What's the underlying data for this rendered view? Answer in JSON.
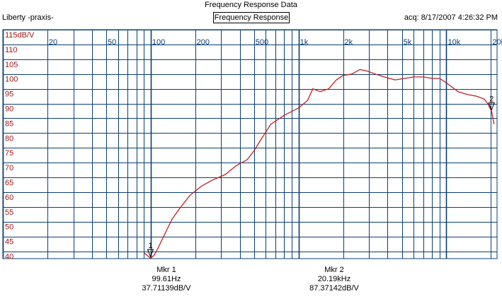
{
  "window_title": "Frequency Response Data",
  "app_name": "Liberty -praxis-",
  "acq_stamp": "acq: 8/17/2007 4:26:32 PM",
  "plot_title": "Frequency Response",
  "markers": [
    {
      "label": "Mkr 1",
      "freq": "99.61Hz",
      "level": "37.71139dB/V",
      "tag": "1",
      "x_hz": 99.61,
      "y_db": 37.71
    },
    {
      "label": "Mkr 2",
      "freq": "20.19kHz",
      "level": "87.37142dB/V",
      "tag": "2",
      "x_hz": 20190,
      "y_db": 87.37
    }
  ],
  "colors": {
    "grid": "#0b3f73",
    "trace": "#c02020",
    "y_labels": "#a01818",
    "x_labels": "#0b3f73"
  },
  "chart_data": {
    "type": "line",
    "xscale": "log",
    "xlim": [
      10,
      22000
    ],
    "ylim": [
      37.5,
      115
    ],
    "x_tick_labels": [
      {
        "hz": 20,
        "label": "20"
      },
      {
        "hz": 50,
        "label": "50"
      },
      {
        "hz": 100,
        "label": "100"
      },
      {
        "hz": 200,
        "label": "200"
      },
      {
        "hz": 500,
        "label": "500"
      },
      {
        "hz": 1000,
        "label": "1k"
      },
      {
        "hz": 2000,
        "label": "2k"
      },
      {
        "hz": 5000,
        "label": "5k"
      },
      {
        "hz": 10000,
        "label": "10k"
      },
      {
        "hz": 20000,
        "label": "20k"
      }
    ],
    "y_tick_labels": [
      {
        "db": 115,
        "label": "115dB/V"
      },
      {
        "db": 110,
        "label": "110"
      },
      {
        "db": 105,
        "label": "105"
      },
      {
        "db": 100,
        "label": "100"
      },
      {
        "db": 95,
        "label": "95"
      },
      {
        "db": 90,
        "label": "90"
      },
      {
        "db": 85,
        "label": "85"
      },
      {
        "db": 80,
        "label": "80"
      },
      {
        "db": 75,
        "label": "75"
      },
      {
        "db": 70,
        "label": "70"
      },
      {
        "db": 65,
        "label": "65"
      },
      {
        "db": 60,
        "label": "60"
      },
      {
        "db": 55,
        "label": "55"
      },
      {
        "db": 50,
        "label": "50"
      },
      {
        "db": 45,
        "label": "45"
      },
      {
        "db": 40,
        "label": "40"
      }
    ],
    "grid": true,
    "series": [
      {
        "x": [
          90,
          95,
          99.6,
          105,
          112,
          125,
          140,
          160,
          185,
          220,
          260,
          320,
          380,
          450,
          500,
          560,
          650,
          800,
          1000,
          1150,
          1250,
          1400,
          1600,
          1800,
          2000,
          2300,
          2600,
          2900,
          3300,
          3800,
          4500,
          5200,
          6000,
          7000,
          8000,
          9000,
          10000,
          12000,
          14000,
          16000,
          18000,
          19000,
          20190,
          21000
        ],
        "y": [
          39.5,
          38.5,
          37.7,
          38.5,
          41,
          46,
          51,
          55,
          59,
          62,
          64,
          66,
          69,
          71,
          74,
          78,
          83,
          86,
          88.5,
          91,
          95,
          94,
          95,
          98,
          99.5,
          100,
          101.5,
          101,
          100,
          99,
          98,
          98.5,
          99,
          99,
          98.5,
          98.5,
          97,
          94,
          93,
          92.5,
          91.5,
          90,
          87.4,
          83
        ]
      }
    ]
  }
}
